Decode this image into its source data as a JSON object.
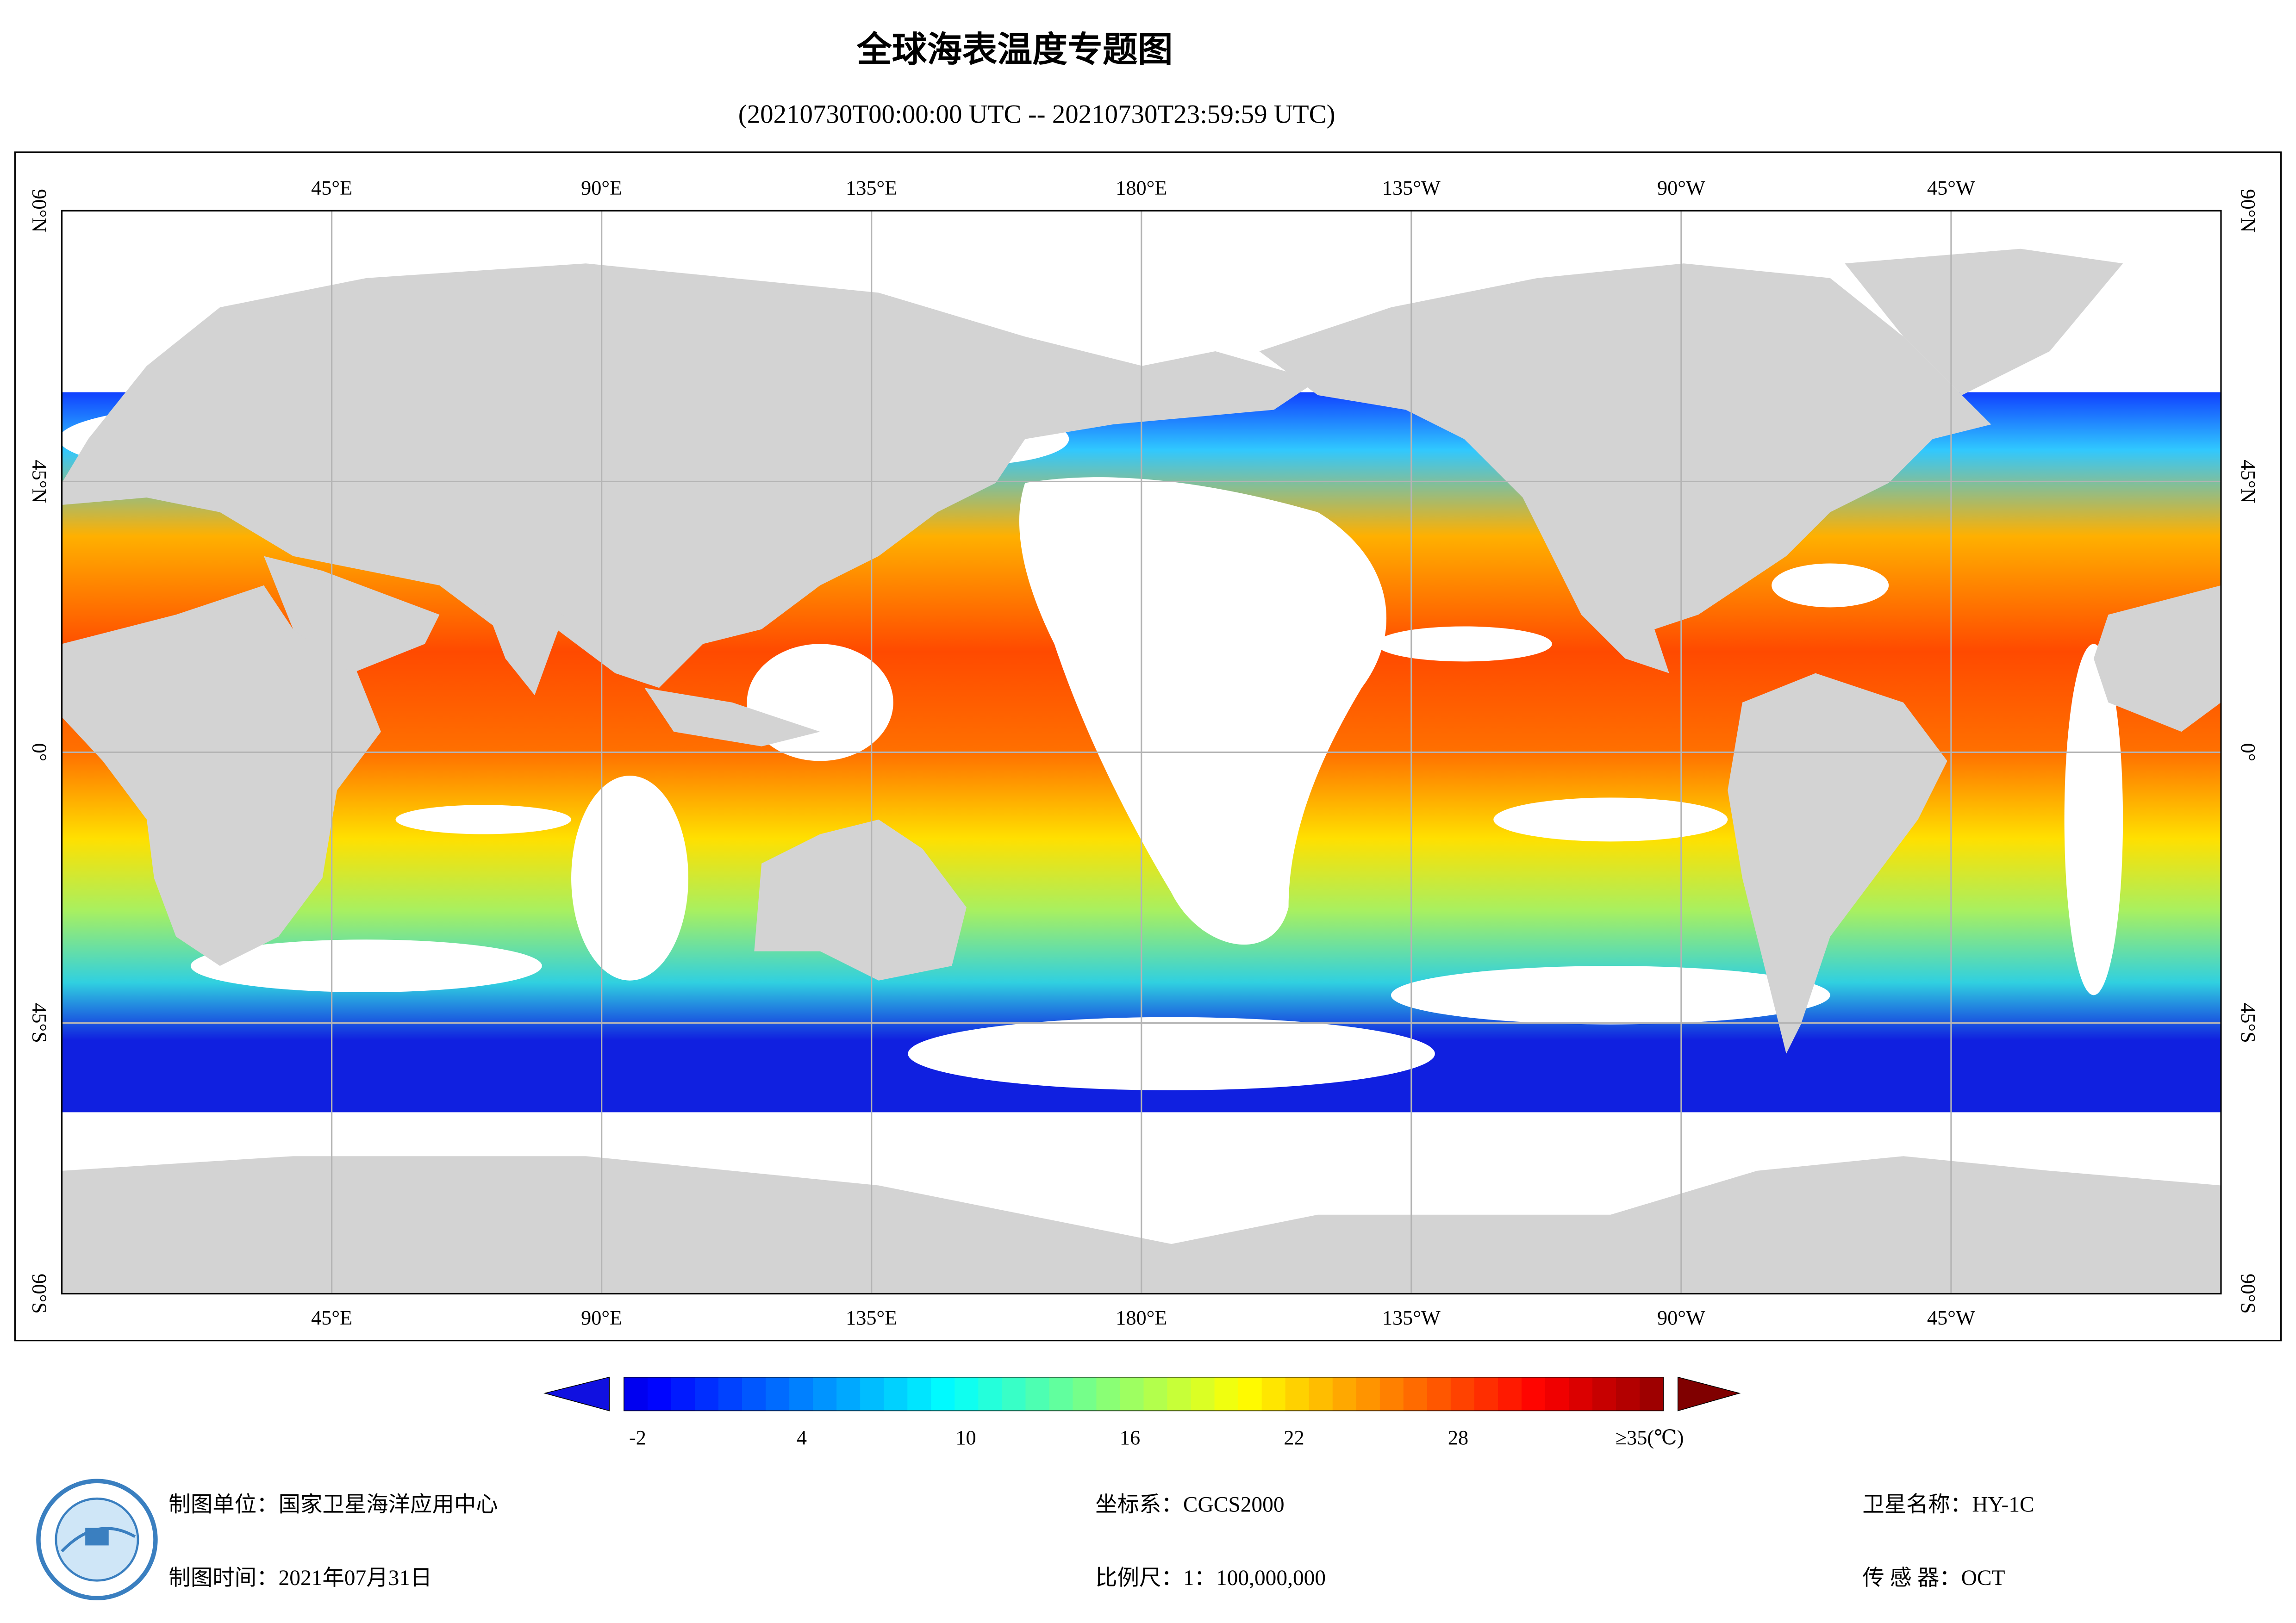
{
  "header": {
    "title": "全球海表温度专题图",
    "subtitle": "(20210730T00:00:00 UTC -- 20210730T23:59:59 UTC)"
  },
  "map": {
    "xlim": [
      0,
      360
    ],
    "xticks": [
      {
        "value": 45,
        "label": "45°E"
      },
      {
        "value": 90,
        "label": "90°E"
      },
      {
        "value": 135,
        "label": "135°E"
      },
      {
        "value": 180,
        "label": "180°E"
      },
      {
        "value": -135,
        "label": "135°W"
      },
      {
        "value": -90,
        "label": "90°W"
      },
      {
        "value": -45,
        "label": "45°W"
      }
    ],
    "ylim": [
      -90,
      90
    ],
    "yticks": [
      {
        "value": 90,
        "label": "90°N"
      },
      {
        "value": 45,
        "label": "45°N"
      },
      {
        "value": 0,
        "label": "0°"
      },
      {
        "value": -45,
        "label": "45°S"
      },
      {
        "value": -90,
        "label": "90°S"
      }
    ],
    "grid": true
  },
  "colorbar": {
    "lim": [
      -2.5,
      35.5
    ],
    "ticks": [
      -2,
      4,
      10,
      16,
      22,
      28,
      {
        "value": 35,
        "label": "≥35(℃)"
      }
    ]
  },
  "footer": {
    "unit": "制图单位：国家卫星海洋应用中心",
    "date": "制图时间：2021年07月31日",
    "crs": "坐标系：CGCS2000",
    "scale": "比例尺：1：100,000,000",
    "satellite": "卫星名称：HY-1C",
    "sensor": "传 感 器：OCT"
  }
}
